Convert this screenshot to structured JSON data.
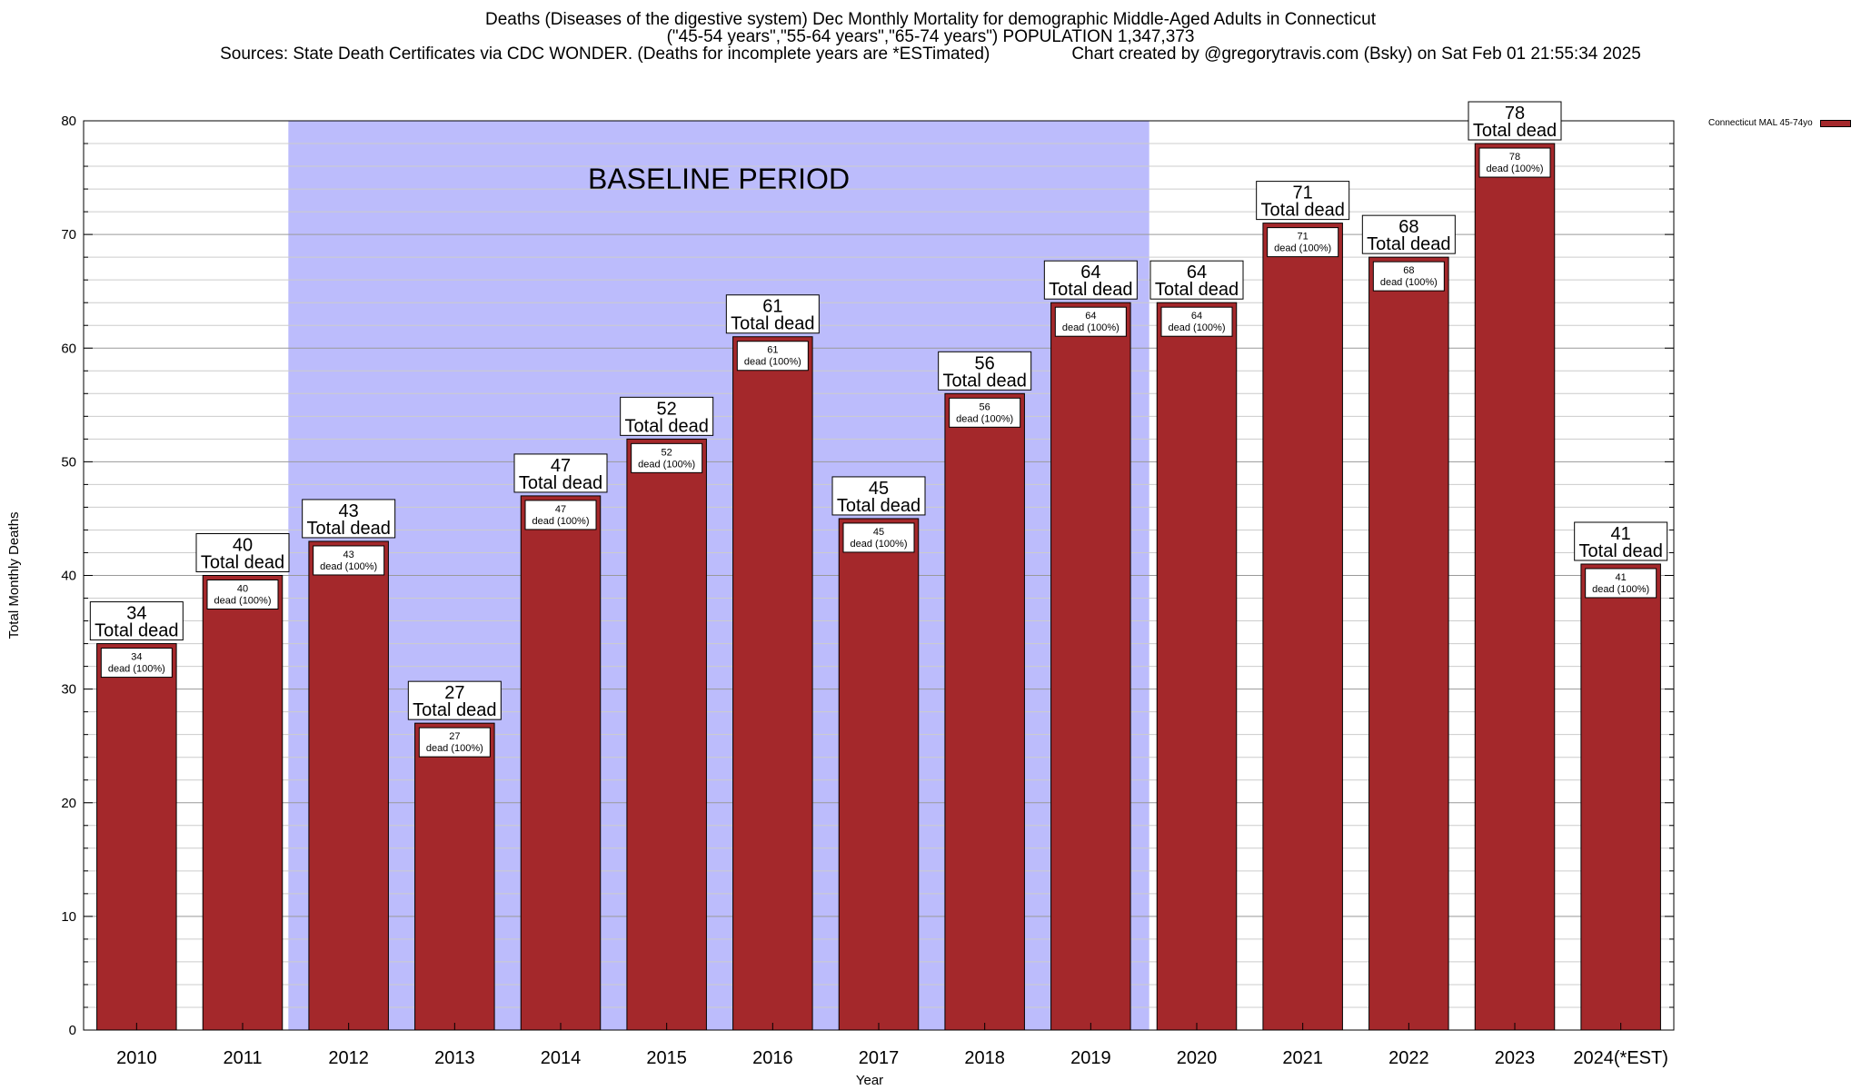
{
  "title": {
    "line1": "Deaths (Diseases of the digestive system) Dec Monthly Mortality for demographic Middle-Aged Adults in Connecticut",
    "line2": "(\"45-54 years\",\"55-64 years\",\"65-74 years\") POPULATION 1,347,373",
    "sources": "Sources: State Death Certificates via CDC WONDER. (Deaths for incomplete years are *ESTimated)",
    "credit": "Chart created by @gregorytravis.com (Bsky) on Sat Feb 01 21:55:34 2025"
  },
  "chart_data": {
    "type": "bar",
    "categories": [
      "2010",
      "2011",
      "2012",
      "2013",
      "2014",
      "2015",
      "2016",
      "2017",
      "2018",
      "2019",
      "2020",
      "2021",
      "2022",
      "2023",
      "2024(*EST)"
    ],
    "series": [
      {
        "name": "Connecticut MAL 45-74yo",
        "values": [
          34,
          40,
          43,
          27,
          47,
          52,
          61,
          45,
          56,
          64,
          64,
          71,
          68,
          78,
          41
        ]
      }
    ],
    "xlabel": "Year",
    "ylabel": "Total Monthly Deaths",
    "ylim": [
      0,
      80
    ],
    "yticks": [
      0,
      10,
      20,
      30,
      40,
      50,
      60,
      70,
      80
    ],
    "grid": true,
    "legend_position": "top-right",
    "bar_label_total": "Total dead",
    "bar_label_inner": "dead (100%)",
    "baseline": {
      "label": "BASELINE PERIOD",
      "from": "2012",
      "to": "2019"
    },
    "colors": {
      "bar": "#a4282b",
      "baseline": "#bcbcfc"
    }
  }
}
